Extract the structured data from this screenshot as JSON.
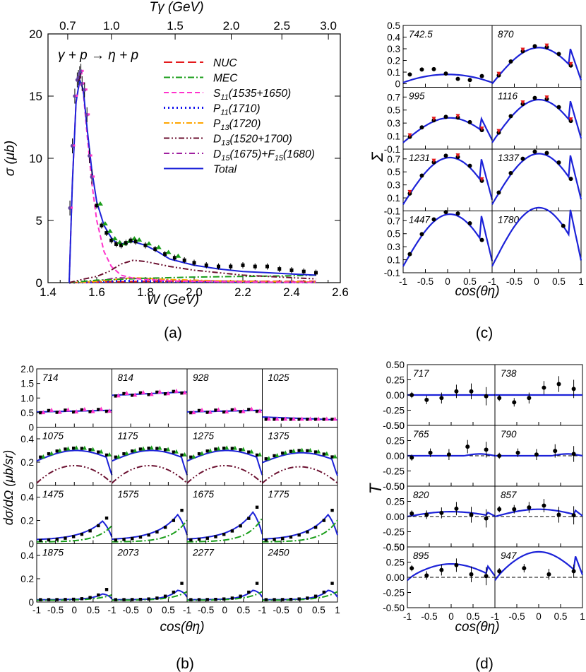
{
  "chart_data": [
    {
      "panel": "a",
      "type": "line",
      "caption": "(a)",
      "reaction_label": "γ + p → η + p",
      "xlabel": "W (GeV)",
      "ylabel": "σ (μb)",
      "top_axis_label": "Tγ (GeV)",
      "xlim": [
        1.4,
        2.6
      ],
      "ylim": [
        0,
        20
      ],
      "xticks": [
        "1.4",
        "1.6",
        "1.8",
        "2.0",
        "2.2",
        "2.4",
        "2.6"
      ],
      "yticks": [
        "0",
        "5",
        "10",
        "15",
        "20"
      ],
      "top_ticks": [
        "0.7",
        "1.0",
        "1.5",
        "2.0",
        "2.5",
        "3.0"
      ],
      "legend": [
        "NUC",
        "MEC",
        "S11(1535+1650)",
        "P11(1710)",
        "P13(1720)",
        "D13(1520+1700)",
        "D15(1675)+F15(1680)",
        "Total"
      ],
      "series": [
        {
          "name": "Total",
          "x": [
            1.487,
            1.5,
            1.515,
            1.53,
            1.545,
            1.56,
            1.58,
            1.6,
            1.63,
            1.66,
            1.68,
            1.7,
            1.72,
            1.75,
            1.8,
            1.85,
            1.9,
            2.0,
            2.1,
            2.2,
            2.3,
            2.4,
            2.5
          ],
          "y": [
            0,
            8,
            14.5,
            16.3,
            15.5,
            12.5,
            9,
            6.5,
            4.6,
            3.6,
            3.2,
            3.1,
            3.2,
            3.3,
            3.0,
            2.5,
            1.9,
            1.4,
            1.1,
            0.9,
            0.8,
            0.7,
            0.6
          ]
        },
        {
          "name": "S11(1535+1650)",
          "x": [
            1.487,
            1.5,
            1.515,
            1.53,
            1.545,
            1.56,
            1.58,
            1.6,
            1.63,
            1.66,
            1.7,
            1.75,
            1.8,
            1.9,
            2.0,
            2.2,
            2.5
          ],
          "y": [
            0,
            8,
            14.5,
            16.2,
            15.3,
            12,
            8,
            5,
            2.5,
            1.3,
            0.6,
            0.35,
            0.25,
            0.15,
            0.1,
            0.05,
            0.02
          ]
        },
        {
          "name": "D13(1520+1700)",
          "x": [
            1.487,
            1.55,
            1.6,
            1.65,
            1.7,
            1.75,
            1.8,
            1.9,
            2.0,
            2.2,
            2.5
          ],
          "y": [
            0,
            0.3,
            0.5,
            0.9,
            1.5,
            1.8,
            1.7,
            1.3,
            1.0,
            0.6,
            0.3
          ]
        },
        {
          "name": "MEC",
          "x": [
            1.487,
            1.6,
            1.8,
            2.0,
            2.2,
            2.4,
            2.5
          ],
          "y": [
            0,
            0.2,
            0.35,
            0.45,
            0.5,
            0.55,
            0.6
          ]
        },
        {
          "name": "P13(1720)",
          "x": [
            1.487,
            1.6,
            1.7,
            1.75,
            1.8,
            1.9,
            2.0,
            2.2,
            2.5
          ],
          "y": [
            0,
            0.1,
            0.3,
            0.4,
            0.35,
            0.25,
            0.2,
            0.1,
            0.05
          ]
        },
        {
          "name": "NUC",
          "x": [
            1.487,
            1.6,
            1.8,
            2.0,
            2.2,
            2.5
          ],
          "y": [
            0,
            0.05,
            0.1,
            0.12,
            0.12,
            0.1
          ]
        },
        {
          "name": "P11(1710)",
          "x": [
            1.487,
            1.6,
            1.7,
            1.8,
            2.0,
            2.5
          ],
          "y": [
            0,
            0.05,
            0.15,
            0.12,
            0.08,
            0.03
          ]
        },
        {
          "name": "D15(1675)+F15(1680)",
          "x": [
            1.487,
            1.6,
            1.68,
            1.75,
            1.85,
            2.0,
            2.5
          ],
          "y": [
            0,
            0.1,
            0.4,
            0.35,
            0.25,
            0.15,
            0.05
          ]
        },
        {
          "name": "data",
          "x": [
            1.49,
            1.5,
            1.51,
            1.52,
            1.525,
            1.53,
            1.535,
            1.54,
            1.55,
            1.56,
            1.57,
            1.58,
            1.6,
            1.62,
            1.64,
            1.66,
            1.68,
            1.7,
            1.72,
            1.74,
            1.76,
            1.8,
            1.84,
            1.88,
            1.92,
            1.96,
            2.0,
            2.05,
            2.1,
            2.15,
            2.2,
            2.25,
            2.3,
            2.35,
            2.4,
            2.45,
            2.5
          ],
          "y": [
            6,
            11,
            15,
            16.3,
            16.5,
            16.8,
            17,
            16,
            15.5,
            13.5,
            10.2,
            8.5,
            6.2,
            4.6,
            4.0,
            3.4,
            3.1,
            3.0,
            3.2,
            3.4,
            3.3,
            3.0,
            2.7,
            2.3,
            2.0,
            1.8,
            1.6,
            1.4,
            1.3,
            1.3,
            1.4,
            1.3,
            1.3,
            1.1,
            1.0,
            0.9,
            0.8
          ]
        }
      ]
    },
    {
      "panel": "b",
      "type": "scatter",
      "caption": "(b)",
      "xlabel": "cos(θη)",
      "ylabel": "dσ/dΩ (μb/sr)",
      "xticks": [
        "-1",
        "-0.5",
        "0",
        "0.5",
        "1"
      ],
      "yticks_top": [
        "0",
        "0.5",
        "1.0",
        "1.5",
        "2.0"
      ],
      "yticks": [
        "0",
        "0.2",
        "0.4"
      ],
      "ylim_top": [
        0,
        2.0
      ],
      "ylim": [
        0,
        0.5
      ],
      "energies": [
        "714",
        "814",
        "928",
        "1025",
        "1075",
        "1175",
        "1275",
        "1375",
        "1475",
        "1575",
        "1675",
        "1775",
        "1875",
        "2073",
        "2277",
        "2450"
      ]
    },
    {
      "panel": "c",
      "type": "scatter",
      "caption": "(c)",
      "xlabel": "cos(θη)",
      "ylabel": "Σ",
      "xticks": [
        "-1",
        "-0.5",
        "0",
        "0.5",
        "1"
      ],
      "yticks_top": [
        "0",
        "0.1",
        "0.2",
        "0.3",
        "0.4",
        "0.5"
      ],
      "yticks": [
        "-0.1",
        "0.1",
        "0.3",
        "0.5",
        "0.7"
      ],
      "energies": [
        "742.5",
        "870",
        "995",
        "1116",
        "1231",
        "1337",
        "1447",
        "1780"
      ]
    },
    {
      "panel": "d",
      "type": "scatter",
      "caption": "(d)",
      "xlabel": "cos(θη)",
      "ylabel": "T",
      "xticks": [
        "-1",
        "-0.5",
        "0",
        "0.5",
        "1"
      ],
      "yticks": [
        "-0.50",
        "-0.25",
        "0.00",
        "0.25",
        "0.50"
      ],
      "energies": [
        "717",
        "738",
        "765",
        "790",
        "820",
        "857",
        "895",
        "947"
      ]
    }
  ],
  "colors": {
    "NUC": "#e41a1c",
    "MEC": "#1a9e1a",
    "S11": "#ff33cc",
    "P11": "#1010ee",
    "P13": "#ffa500",
    "D13": "#6b1030",
    "D15": "#a020a0",
    "Total": "#1c22d8"
  }
}
